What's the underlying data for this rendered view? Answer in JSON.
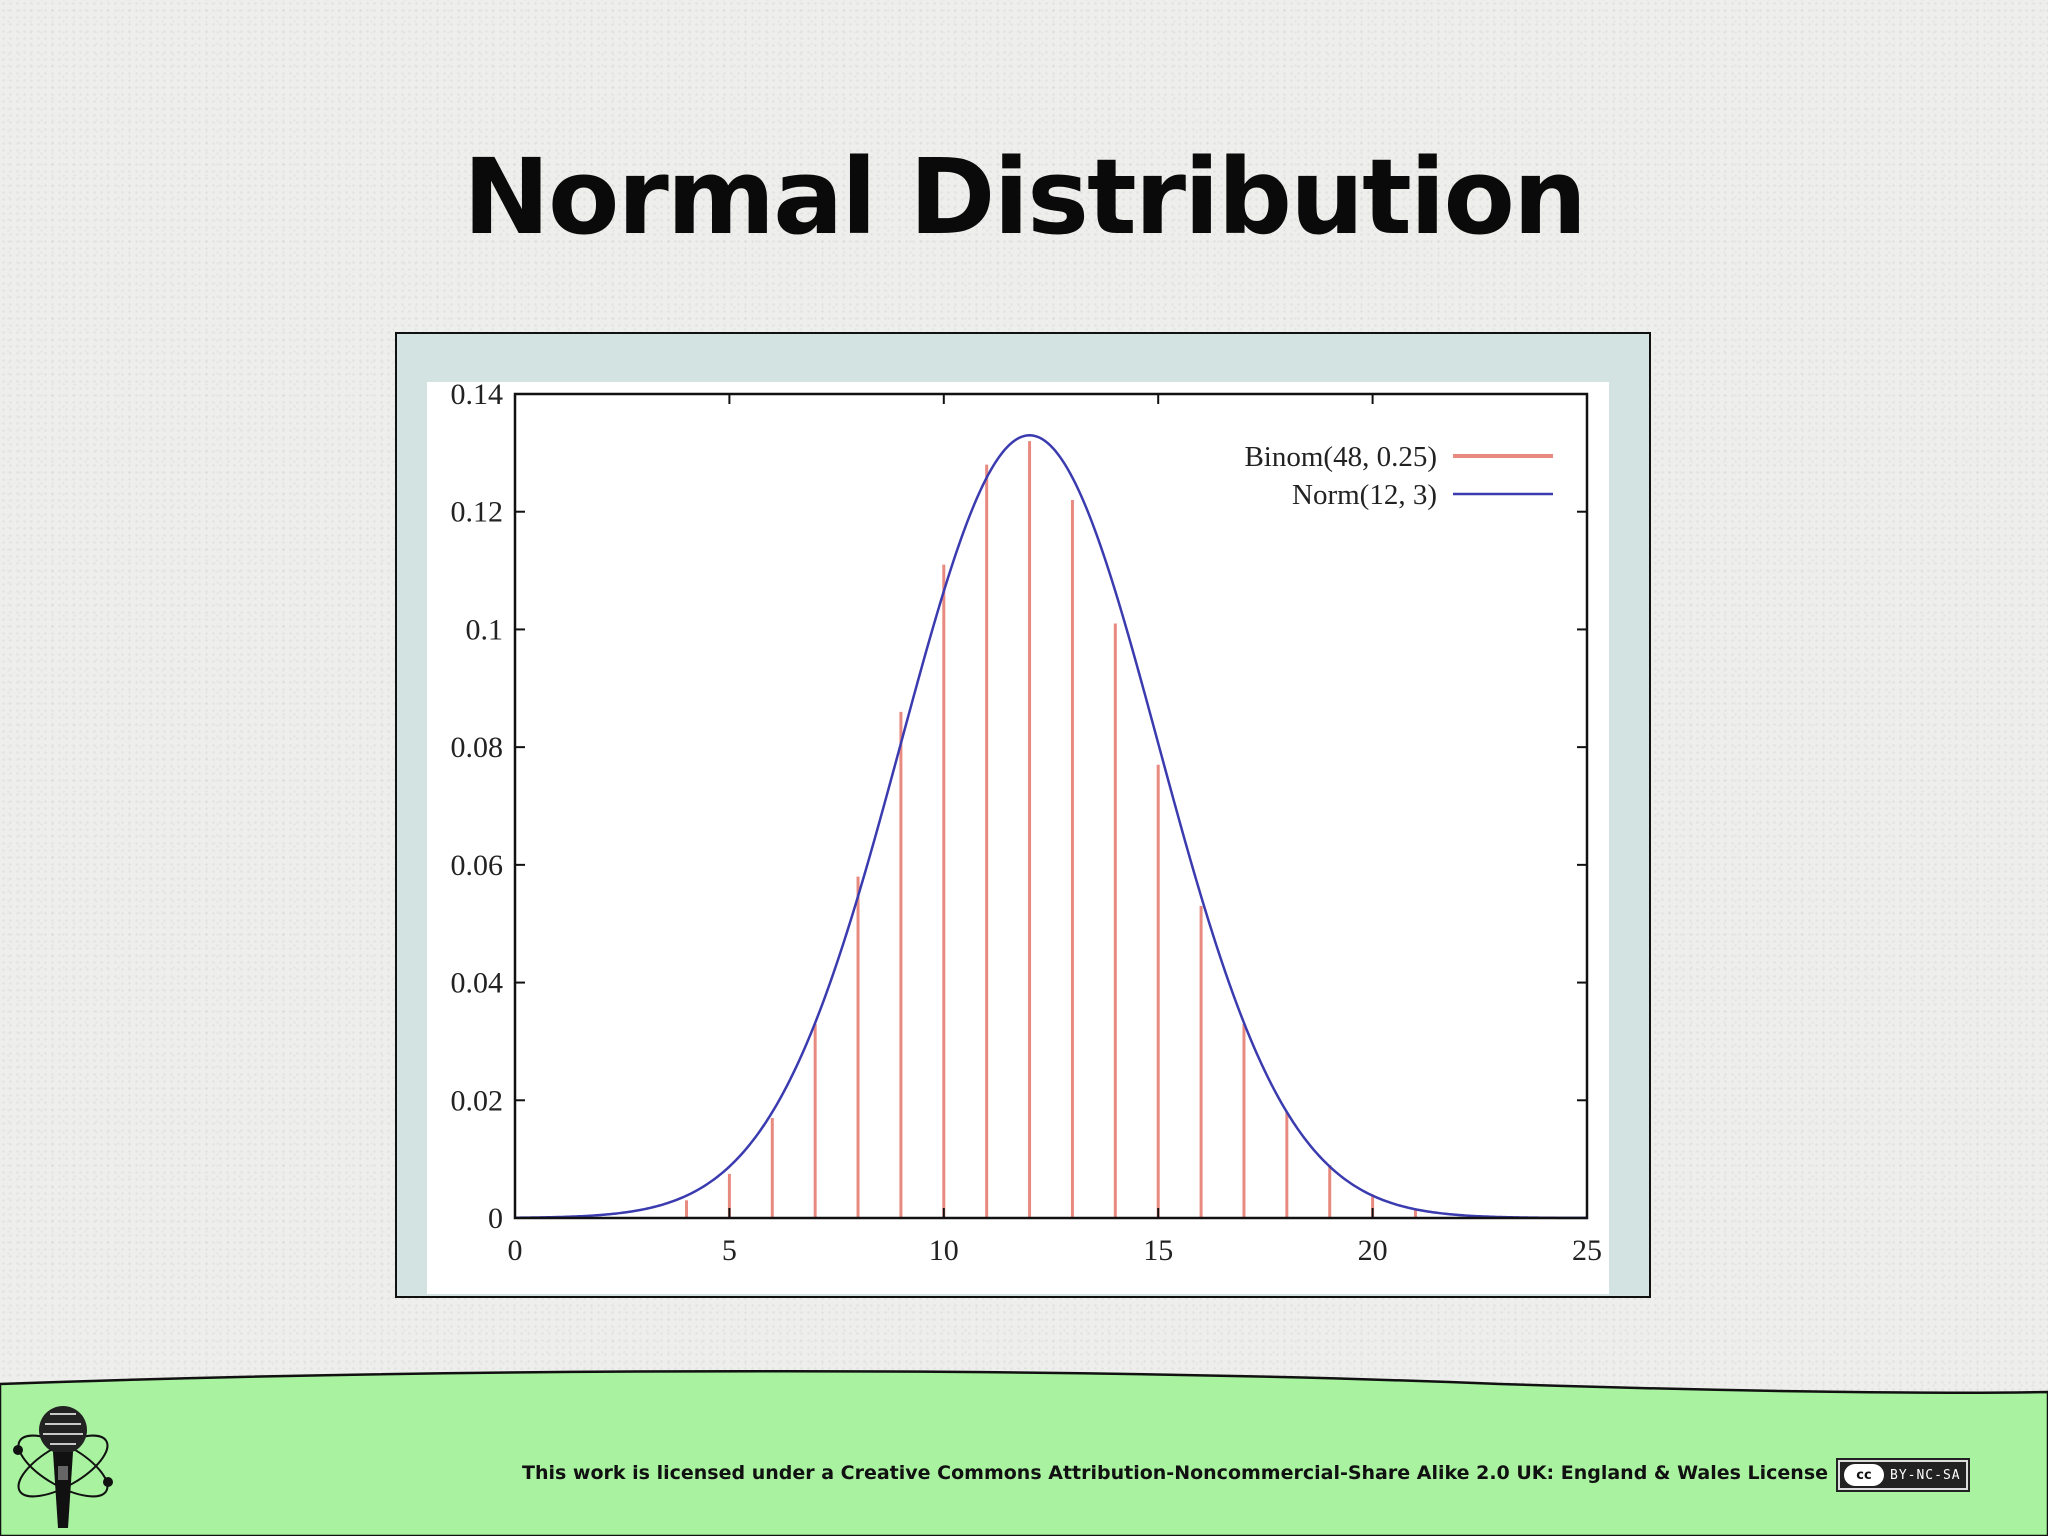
{
  "slide": {
    "title": "Normal Distribution",
    "footer_license": "This work is licensed under a Creative Commons Attribution-Noncommercial-Share Alike 2.0 UK: England & Wales License",
    "cc_badge": {
      "symbol": "cc",
      "text": "BY-NC-SA"
    },
    "logo_icon": "microphone-atom-icon"
  },
  "colors": {
    "background": "#eeeeec",
    "chart_frame": "#d2e3e1",
    "footer_band": "#a8f2a0",
    "binom_series": "#e98a80",
    "norm_series": "#3b3bb0"
  },
  "chart_data": {
    "type": "bar",
    "xlim": [
      0,
      25
    ],
    "ylim": [
      0,
      0.14
    ],
    "xticks": [
      "0",
      "5",
      "10",
      "15",
      "20",
      "25"
    ],
    "yticks": [
      "0",
      "0.02",
      "0.04",
      "0.06",
      "0.08",
      "0.1",
      "0.12",
      "0.14"
    ],
    "grid": false,
    "legend": "top-right",
    "series": [
      {
        "name": "Binom(48, 0.25)",
        "type": "impulse",
        "color": "#e98a80",
        "x": [
          4,
          5,
          6,
          7,
          8,
          9,
          10,
          11,
          12,
          13,
          14,
          15,
          16,
          17,
          18,
          19,
          20,
          21
        ],
        "values": [
          0.003,
          0.0075,
          0.017,
          0.033,
          0.058,
          0.086,
          0.111,
          0.128,
          0.132,
          0.122,
          0.101,
          0.077,
          0.053,
          0.033,
          0.018,
          0.009,
          0.004,
          0.0015
        ]
      },
      {
        "name": "Norm(12, 3)",
        "type": "line",
        "color": "#3b3bb0",
        "mean": 12,
        "sd": 3
      }
    ]
  }
}
